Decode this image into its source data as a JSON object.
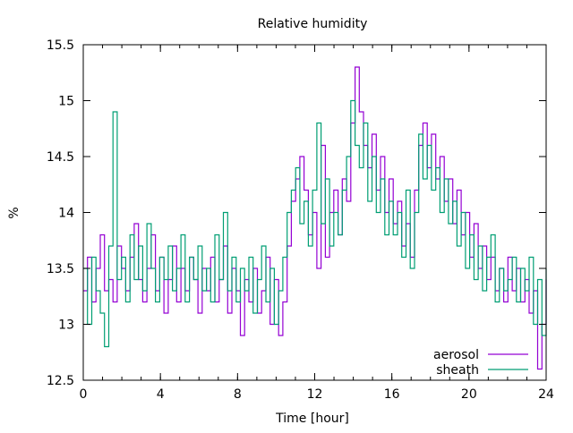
{
  "chart_data": {
    "type": "line",
    "style": "steps",
    "title": "Relative humidity",
    "xlabel": "Time [hour]",
    "ylabel": "%",
    "xlim": [
      0,
      24
    ],
    "ylim": [
      12.5,
      15.5
    ],
    "xticks": [
      0,
      4,
      8,
      12,
      16,
      20,
      24
    ],
    "xtick_labels": [
      "0",
      "4",
      "8",
      "12",
      "16",
      "20",
      "24"
    ],
    "xminor_step": 1,
    "yticks": [
      12.5,
      13,
      13.5,
      14,
      14.5,
      15,
      15.5
    ],
    "ytick_labels": [
      "12.5",
      "13",
      "13.5",
      "14",
      "14.5",
      "15",
      "15.5"
    ],
    "grid": false,
    "legend_position": "bottom-right",
    "series": [
      {
        "name": "aerosol",
        "color": "#9400D3",
        "values": [
          13.3,
          13.6,
          13.2,
          13.5,
          13.8,
          13.3,
          13.4,
          13.2,
          13.7,
          13.5,
          13.3,
          13.6,
          13.9,
          13.4,
          13.2,
          13.5,
          13.8,
          13.3,
          13.6,
          13.1,
          13.4,
          13.7,
          13.2,
          13.5,
          13.3,
          13.6,
          13.4,
          13.1,
          13.5,
          13.3,
          13.6,
          13.2,
          13.4,
          13.7,
          13.1,
          13.5,
          13.3,
          12.9,
          13.4,
          13.2,
          13.5,
          13.1,
          13.3,
          13.6,
          13.0,
          13.4,
          12.9,
          13.2,
          13.7,
          14.1,
          14.3,
          14.5,
          14.2,
          13.8,
          14.0,
          13.5,
          14.6,
          13.6,
          14.0,
          14.2,
          13.8,
          14.3,
          14.1,
          14.8,
          15.3,
          14.9,
          14.6,
          14.4,
          14.7,
          14.2,
          14.5,
          14.0,
          14.3,
          13.9,
          14.1,
          13.7,
          13.9,
          13.6,
          14.2,
          14.6,
          14.8,
          14.4,
          14.7,
          14.3,
          14.5,
          14.1,
          14.3,
          13.9,
          14.2,
          13.8,
          14.0,
          13.6,
          13.9,
          13.5,
          13.7,
          13.4,
          13.6,
          13.3,
          13.5,
          13.2,
          13.6,
          13.3,
          13.5,
          13.2,
          13.4,
          13.1,
          13.3,
          12.6,
          13.0,
          13.4
        ]
      },
      {
        "name": "sheath",
        "color": "#009E73",
        "values": [
          13.5,
          13.0,
          13.6,
          13.3,
          13.1,
          12.8,
          13.7,
          14.9,
          13.4,
          13.6,
          13.2,
          13.8,
          13.4,
          13.7,
          13.3,
          13.9,
          13.5,
          13.2,
          13.6,
          13.4,
          13.7,
          13.3,
          13.5,
          13.8,
          13.2,
          13.6,
          13.4,
          13.7,
          13.3,
          13.5,
          13.2,
          13.8,
          13.4,
          14.0,
          13.3,
          13.6,
          13.2,
          13.5,
          13.3,
          13.6,
          13.1,
          13.4,
          13.7,
          13.2,
          13.5,
          13.0,
          13.3,
          13.6,
          14.0,
          14.2,
          14.4,
          13.9,
          14.1,
          13.7,
          14.2,
          14.8,
          13.9,
          14.3,
          13.7,
          14.0,
          13.8,
          14.2,
          14.5,
          15.0,
          14.6,
          14.4,
          14.8,
          14.1,
          14.5,
          14.0,
          14.3,
          13.8,
          14.1,
          13.8,
          14.0,
          13.6,
          14.2,
          13.5,
          14.0,
          14.7,
          14.3,
          14.6,
          14.2,
          14.4,
          14.0,
          14.3,
          13.9,
          14.1,
          13.7,
          14.0,
          13.5,
          13.8,
          13.4,
          13.7,
          13.3,
          13.6,
          13.8,
          13.2,
          13.5,
          13.3,
          13.4,
          13.6,
          13.2,
          13.5,
          13.3,
          13.6,
          13.0,
          13.4,
          12.9,
          13.5
        ]
      }
    ]
  }
}
